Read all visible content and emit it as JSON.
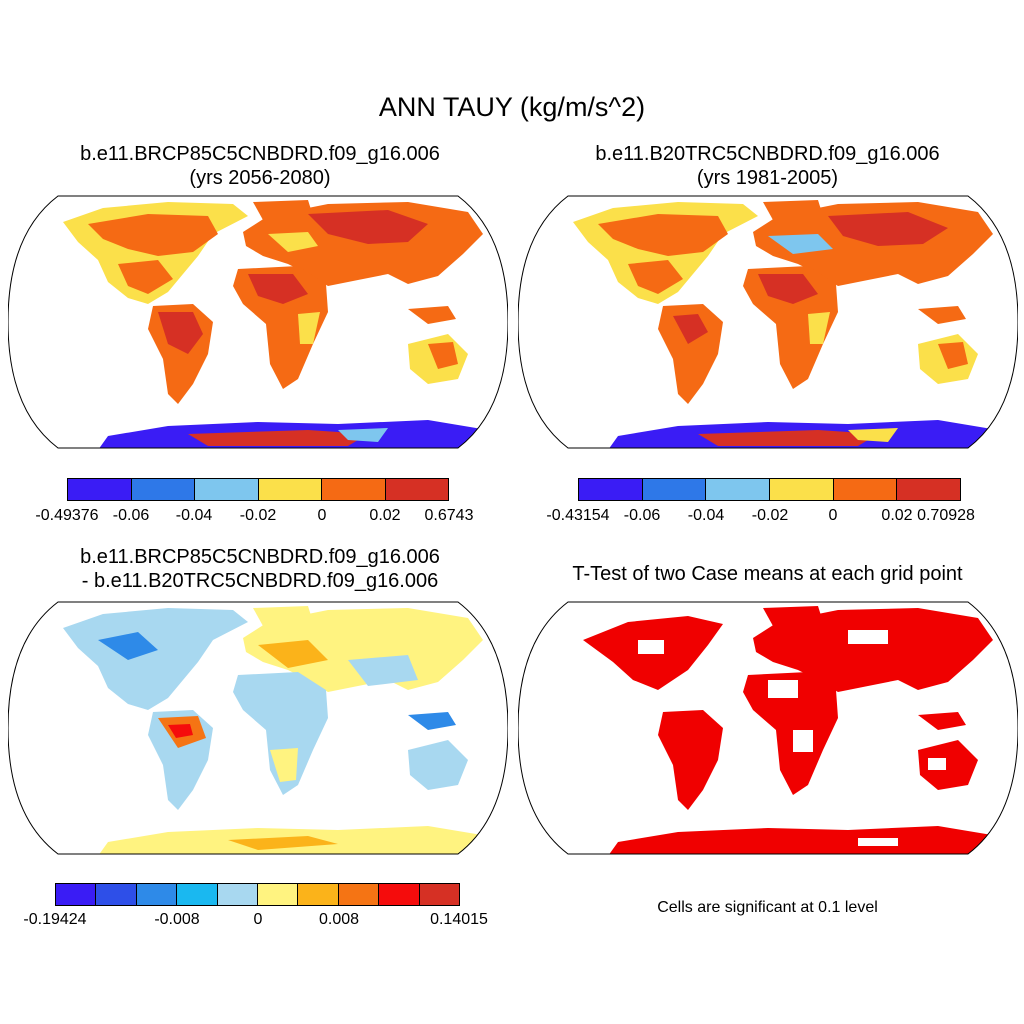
{
  "figure": {
    "title": "ANN TAUY (kg/m/s^2)"
  },
  "panels": {
    "top_left": {
      "title_line1": "b.e11.BRCP85C5CNBDRD.f09_g16.006",
      "title_line2": "(yrs 2056-2080)",
      "colorbar": {
        "colors": [
          "#3a1cf5",
          "#2e78e8",
          "#7ec6ee",
          "#fbe04a",
          "#f56a14",
          "#d63024"
        ],
        "labels": [
          "-0.49376",
          "-0.06",
          "-0.04",
          "-0.02",
          "0",
          "0.02",
          "0.6743"
        ]
      }
    },
    "top_right": {
      "title_line1": "b.e11.B20TRC5CNBDRD.f09_g16.006",
      "title_line2": "(yrs 1981-2005)",
      "colorbar": {
        "colors": [
          "#3a1cf5",
          "#2e78e8",
          "#7ec6ee",
          "#fbe04a",
          "#f56a14",
          "#d63024"
        ],
        "labels": [
          "-0.43154",
          "-0.06",
          "-0.04",
          "-0.02",
          "0",
          "0.02",
          "0.70928"
        ]
      }
    },
    "bottom_left": {
      "title_line1": "b.e11.BRCP85C5CNBDRD.f09_g16.006",
      "title_line2": "- b.e11.B20TRC5CNBDRD.f09_g16.006",
      "colorbar": {
        "colors": [
          "#3a1cf5",
          "#2e4fe8",
          "#2e8ae8",
          "#1ab8f0",
          "#a8d8f0",
          "#fff380",
          "#fbb31a",
          "#f57414",
          "#f50c0c",
          "#d63024"
        ],
        "labels": [
          "-0.19424",
          "-0.008",
          "0",
          "0.008",
          "0.14015"
        ]
      }
    },
    "bottom_right": {
      "title_line1": "T-Test of two Case means at each grid point",
      "note": "Cells are significant at 0.1 level",
      "significant_color": "#f00000"
    }
  }
}
